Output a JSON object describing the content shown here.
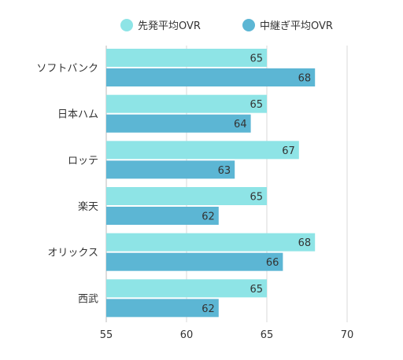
{
  "chart_data": {
    "type": "bar",
    "orientation": "horizontal",
    "categories": [
      "ソフトバンク",
      "日本ハム",
      "ロッテ",
      "楽天",
      "オリックス",
      "西武"
    ],
    "series": [
      {
        "name": "先発平均OVR",
        "values": [
          65,
          65,
          67,
          65,
          68,
          65
        ],
        "color": "#8ee4e6"
      },
      {
        "name": "中継ぎ平均OVR",
        "values": [
          68,
          64,
          63,
          62,
          66,
          62
        ],
        "color": "#5cb6d4"
      }
    ],
    "xlim": [
      55,
      70
    ],
    "xticks": [
      "55",
      "60",
      "65",
      "70"
    ],
    "grid": "vertical",
    "legend": "top",
    "data_labels": true
  }
}
